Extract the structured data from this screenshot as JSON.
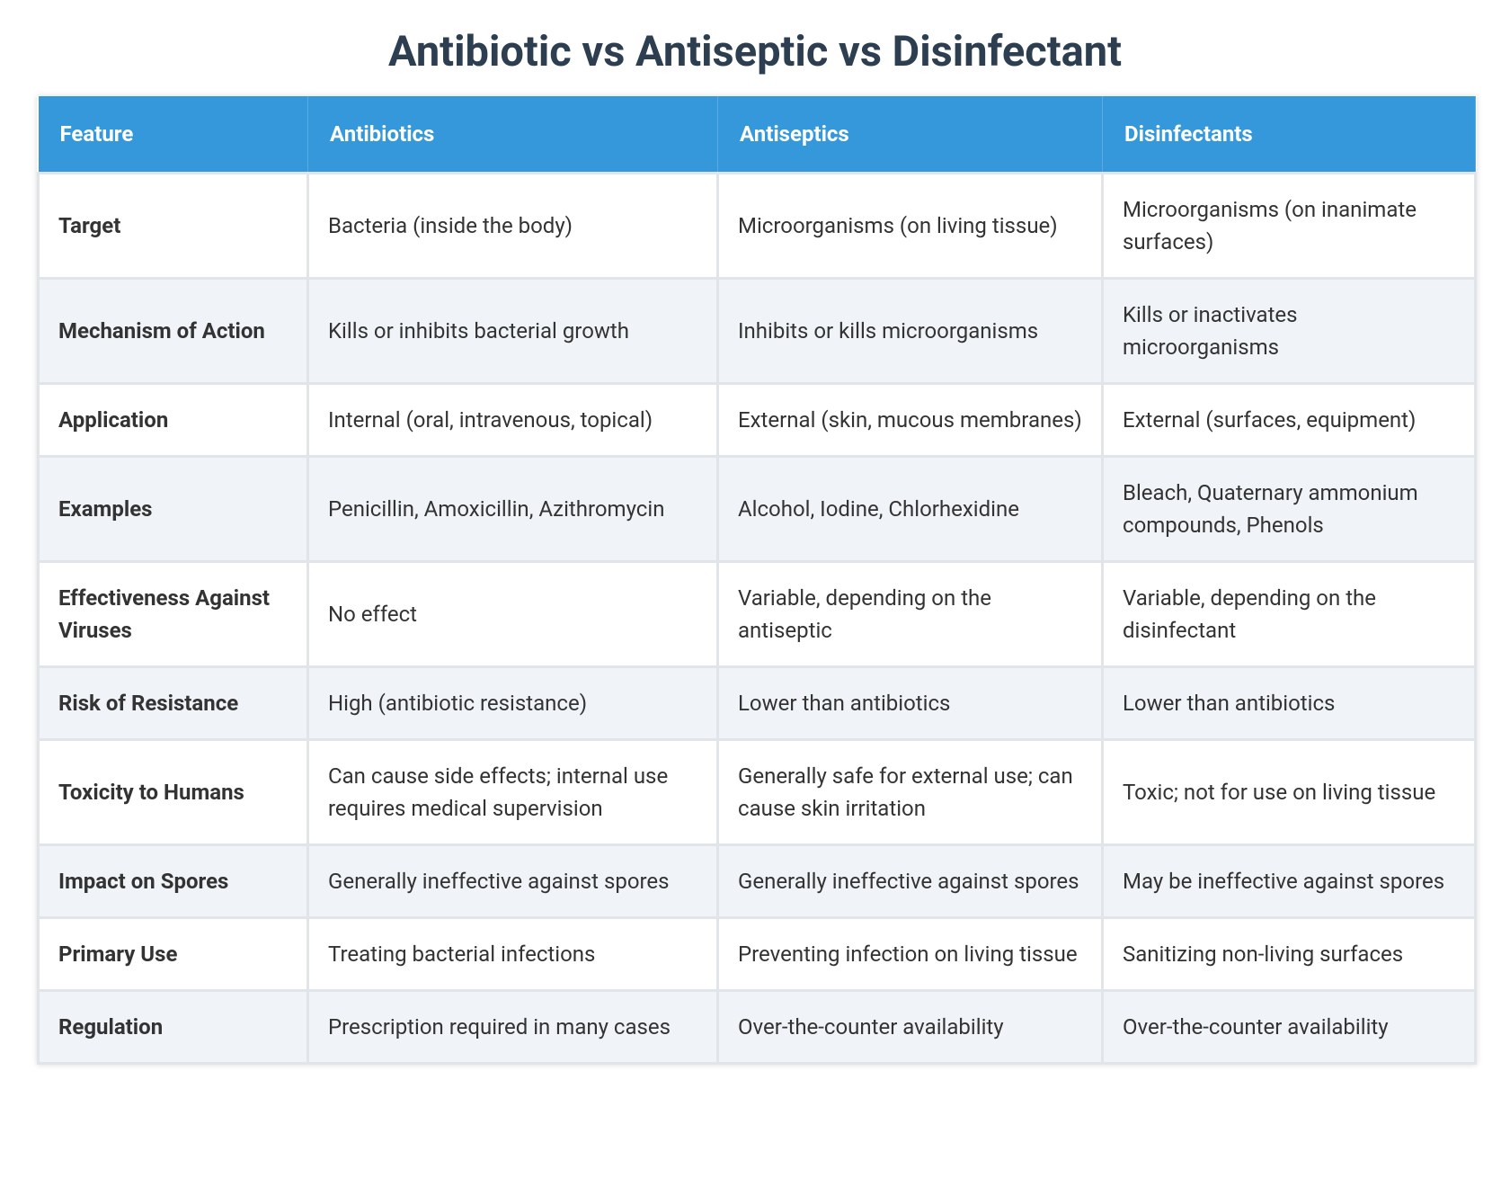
{
  "header": {
    "title": "Antibiotic vs Antiseptic vs Disinfectant"
  },
  "table": {
    "columns": [
      "Feature",
      "Antibiotics",
      "Antiseptics",
      "Disinfectants"
    ],
    "rows": [
      [
        "Target",
        "Bacteria (inside the body)",
        "Microorganisms (on living tissue)",
        "Microorganisms (on inanimate surfaces)"
      ],
      [
        "Mechanism of Action",
        "Kills or inhibits bacterial growth",
        "Inhibits or kills microorganisms",
        "Kills or inactivates microorganisms"
      ],
      [
        "Application",
        "Internal (oral, intravenous, topical)",
        "External (skin, mucous membranes)",
        "External (surfaces, equipment)"
      ],
      [
        "Examples",
        "Penicillin, Amoxicillin, Azithromycin",
        "Alcohol, Iodine, Chlorhexidine",
        "Bleach, Quaternary ammonium compounds, Phenols"
      ],
      [
        "Effectiveness Against Viruses",
        "No effect",
        "Variable, depending on the antiseptic",
        "Variable, depending on the disinfectant"
      ],
      [
        "Risk of Resistance",
        "High (antibiotic resistance)",
        "Lower than antibiotics",
        "Lower than antibiotics"
      ],
      [
        "Toxicity to Humans",
        "Can cause side effects; internal use requires medical supervision",
        "Generally safe for external use; can cause skin irritation",
        "Toxic; not for use on living tissue"
      ],
      [
        "Impact on Spores",
        "Generally ineffective against spores",
        "Generally ineffective against spores",
        "May be ineffective against spores"
      ],
      [
        "Primary Use",
        "Treating bacterial infections",
        "Preventing infection on living tissue",
        "Sanitizing non-living surfaces"
      ],
      [
        "Regulation",
        "Prescription required in many cases",
        "Over-the-counter availability",
        "Over-the-counter availability"
      ]
    ]
  }
}
